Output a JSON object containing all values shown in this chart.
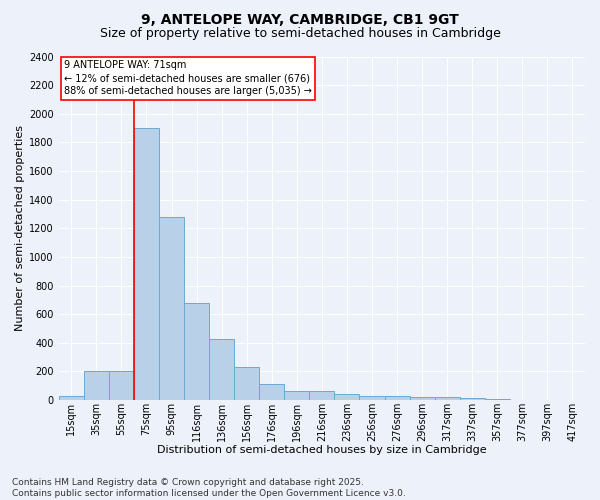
{
  "title": "9, ANTELOPE WAY, CAMBRIDGE, CB1 9GT",
  "subtitle": "Size of property relative to semi-detached houses in Cambridge",
  "xlabel": "Distribution of semi-detached houses by size in Cambridge",
  "ylabel": "Number of semi-detached properties",
  "footer": "Contains HM Land Registry data © Crown copyright and database right 2025.\nContains public sector information licensed under the Open Government Licence v3.0.",
  "categories": [
    "15sqm",
    "35sqm",
    "55sqm",
    "75sqm",
    "95sqm",
    "116sqm",
    "136sqm",
    "156sqm",
    "176sqm",
    "196sqm",
    "216sqm",
    "236sqm",
    "256sqm",
    "276sqm",
    "296sqm",
    "317sqm",
    "337sqm",
    "357sqm",
    "377sqm",
    "397sqm",
    "417sqm"
  ],
  "values": [
    25,
    200,
    200,
    1900,
    1280,
    680,
    430,
    230,
    110,
    65,
    60,
    40,
    30,
    25,
    20,
    20,
    15,
    5,
    2,
    1,
    0
  ],
  "bar_color": "#b8d0e8",
  "bar_edge_color": "#6aaad4",
  "vline_x_index": 3,
  "vline_color": "red",
  "annotation_text": "9 ANTELOPE WAY: 71sqm\n← 12% of semi-detached houses are smaller (676)\n88% of semi-detached houses are larger (5,035) →",
  "annotation_box_color": "white",
  "annotation_box_edge": "red",
  "ylim": [
    0,
    2400
  ],
  "yticks": [
    0,
    200,
    400,
    600,
    800,
    1000,
    1200,
    1400,
    1600,
    1800,
    2000,
    2200,
    2400
  ],
  "bg_color": "#edf2fa",
  "grid_color": "white",
  "title_fontsize": 10,
  "subtitle_fontsize": 9,
  "axis_label_fontsize": 8,
  "tick_fontsize": 7,
  "annotation_fontsize": 7,
  "footer_fontsize": 6.5
}
